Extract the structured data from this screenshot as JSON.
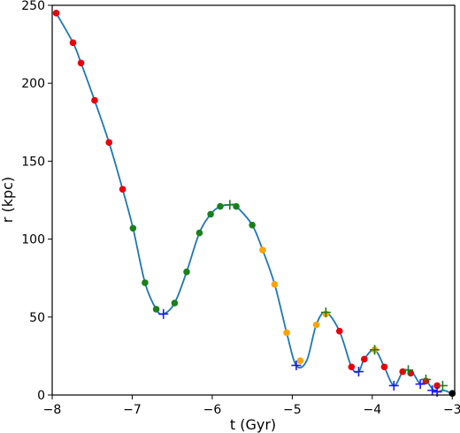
{
  "chart_data": {
    "type": "line",
    "xlabel": "t (Gyr)",
    "ylabel": "r (kpc)",
    "xlim": [
      -8.0,
      -2.97
    ],
    "ylim": [
      0,
      250
    ],
    "xticks": [
      -8,
      -7,
      -6,
      -5,
      -4,
      -3
    ],
    "yticks": [
      0,
      50,
      100,
      150,
      200,
      250
    ],
    "xtick_labels": [
      "−8",
      "−7",
      "−6",
      "−5",
      "−4",
      "−3"
    ],
    "ytick_labels": [
      "0",
      "50",
      "100",
      "150",
      "200",
      "250"
    ],
    "grid": false,
    "colors": {
      "line": "#1f77b4",
      "red": "#e8000b",
      "green": "#1a801a",
      "orange": "#ffa500",
      "blue": "#1a1aff",
      "black": "#000000",
      "brown": "#a0522d"
    },
    "orbit": {
      "x": [
        -7.95,
        -7.74,
        -7.64,
        -7.47,
        -7.29,
        -7.12,
        -6.99,
        -6.84,
        -6.7,
        -6.61,
        -6.47,
        -6.32,
        -6.16,
        -6.02,
        -5.9,
        -5.78,
        -5.7,
        -5.5,
        -5.37,
        -5.22,
        -5.07,
        -4.95,
        -4.82,
        -4.7,
        -4.58,
        -4.41,
        -4.26,
        -4.17,
        -4.1,
        -3.97,
        -3.85,
        -3.73,
        -3.62,
        -3.55,
        -3.49,
        -3.4,
        -3.33,
        -3.25,
        -3.19,
        -3.12,
        -3.05,
        -3.0
      ],
      "y": [
        245,
        226,
        213,
        189,
        162,
        132,
        107,
        72,
        55,
        52,
        59,
        79,
        104,
        116,
        121,
        122,
        121,
        109,
        93,
        71,
        40,
        19,
        22,
        45,
        53,
        41,
        18,
        15,
        23,
        29,
        18,
        6,
        15,
        16,
        14,
        7,
        9,
        4,
        2,
        3,
        2,
        0
      ]
    },
    "markers": {
      "red": {
        "x": [
          -7.95,
          -7.74,
          -7.64,
          -7.47,
          -7.29,
          -7.12,
          -4.41,
          -4.26,
          -4.1,
          -3.85,
          -3.62,
          -3.52,
          -3.33,
          -3.19
        ],
        "y": [
          245,
          226,
          213,
          189,
          162,
          132,
          41,
          18,
          23,
          18,
          15,
          14,
          9,
          6
        ]
      },
      "green": {
        "x": [
          -6.99,
          -6.84,
          -6.7,
          -6.47,
          -6.32,
          -6.16,
          -6.02,
          -5.9,
          -5.7,
          -5.5
        ],
        "y": [
          107,
          72,
          55,
          59,
          79,
          104,
          116,
          121,
          121,
          109
        ]
      },
      "orange": {
        "x": [
          -5.37,
          -5.22,
          -5.07,
          -4.9,
          -4.7,
          -4.58,
          -3.97
        ],
        "y": [
          93,
          71,
          40,
          22,
          45,
          52,
          29
        ]
      },
      "black": {
        "x": [
          -3.0
        ],
        "y": [
          1
        ]
      },
      "plus_blue": {
        "x": [
          -6.61,
          -4.95,
          -4.17,
          -3.73,
          -3.4,
          -3.25,
          -3.19
        ],
        "y": [
          52,
          19,
          15,
          6,
          7,
          3,
          2
        ]
      },
      "plus_green": {
        "x": [
          -5.78,
          -4.58,
          -3.97,
          -3.55,
          -3.33,
          -3.12
        ],
        "y": [
          122,
          53,
          29,
          16,
          10,
          6
        ]
      }
    }
  }
}
